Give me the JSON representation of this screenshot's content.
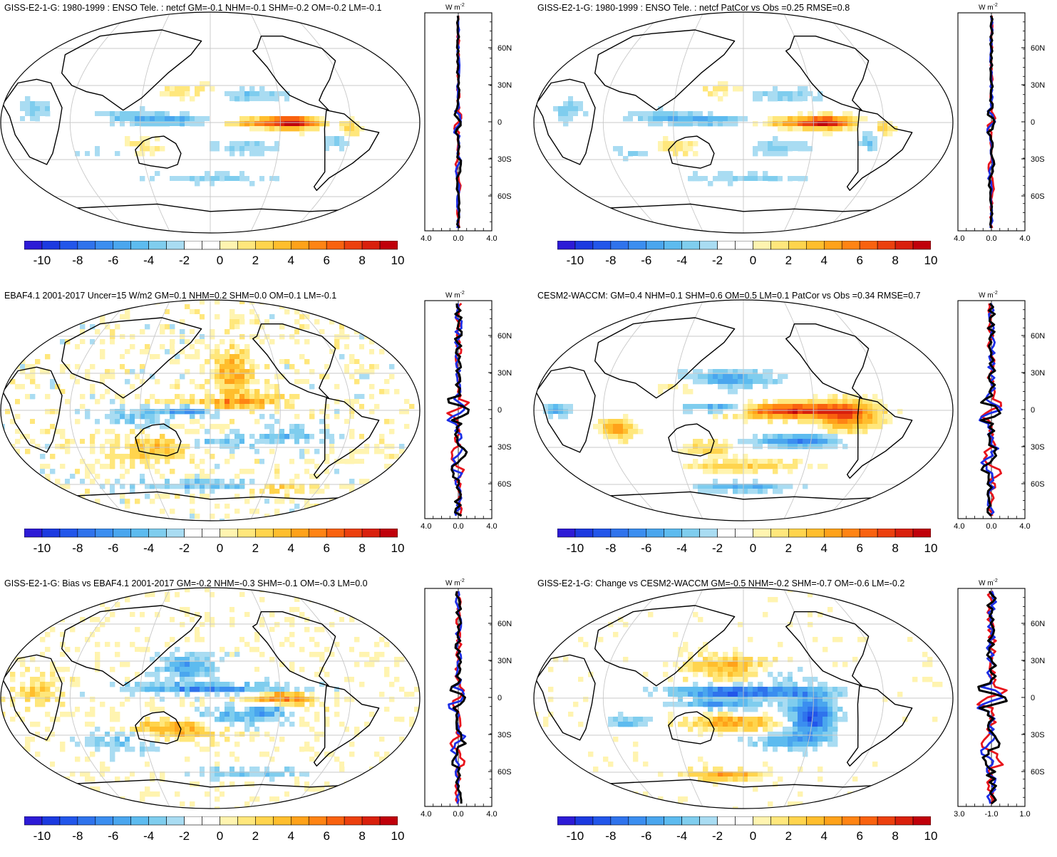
{
  "panels": [
    {
      "id": "p1",
      "title": "GISS-E2-1-G: 1980-1999 : ENSO Tele. : netcf GM=-0.1 NHM=-0.1 SHM=-0.2 OM=-0.2 LM=-0.1",
      "zonal_xticks": [
        "-4.0",
        "0.0",
        "4.0"
      ],
      "pattern": "enso_model"
    },
    {
      "id": "p2",
      "title": "GISS-E2-1-G: 1980-1999 : ENSO Tele. : netcf PatCor vs Obs =0.25 RMSE=0.8",
      "zonal_xticks": [
        "-4.0",
        "0.0",
        "4.0"
      ],
      "pattern": "enso_model"
    },
    {
      "id": "p3",
      "title": "EBAF4.1 2001-2017 Uncer=15 W/m2 GM=0.1 NHM=0.2 SHM=0.0 OM=0.1 LM=-0.1",
      "zonal_xticks": [
        "-4.0",
        "0.0",
        "4.0"
      ],
      "pattern": "ebaf"
    },
    {
      "id": "p4",
      "title": "CESM2-WACCM: GM=0.4 NHM=0.1 SHM=0.6 OM=0.5 LM=0.1 PatCor vs Obs =0.34 RMSE=0.7",
      "zonal_xticks": [
        "-4.0",
        "0.0",
        "4.0"
      ],
      "pattern": "cesm"
    },
    {
      "id": "p5",
      "title": "GISS-E2-1-G: Bias vs EBAF4.1 2001-2017 GM=-0.2 NHM=-0.3 SHM=-0.1 OM=-0.3 LM=0.0",
      "zonal_xticks": [
        "-4.0",
        "0.0",
        "4.0"
      ],
      "pattern": "bias"
    },
    {
      "id": "p6",
      "title": "GISS-E2-1-G: Change vs CESM2-WACCM GM=-0.5 NHM=-0.2 SHM=-0.7 OM=-0.6 LM=-0.2",
      "zonal_xticks": [
        "-3.0",
        "-1.0",
        "1.0"
      ],
      "pattern": "change"
    }
  ],
  "zonal_units": "W m",
  "zonal_units_exp": "-2",
  "lat_labels": [
    "60N",
    "30N",
    "0",
    "30S",
    "60S"
  ],
  "colorbar": {
    "labels": [
      "-10",
      "-8",
      "-6",
      "-4",
      "-2",
      "0",
      "2",
      "4",
      "6",
      "8",
      "10"
    ],
    "colors": [
      "#2d1bd6",
      "#1c3ae0",
      "#2256ea",
      "#2f73ec",
      "#3b8ef0",
      "#4aa6ee",
      "#5dbbef",
      "#7fcdee",
      "#a9dcf2",
      "#ffffff",
      "#ffffff",
      "#fff4b0",
      "#ffe77c",
      "#ffd44d",
      "#ffbe2d",
      "#ffa21a",
      "#ff8414",
      "#f9620f",
      "#ec400e",
      "#d9200c",
      "#c0000a"
    ]
  },
  "zonal_line_colors": {
    "obs": "#e8141c",
    "model": "#1c2ee6",
    "mean": "#000000"
  }
}
